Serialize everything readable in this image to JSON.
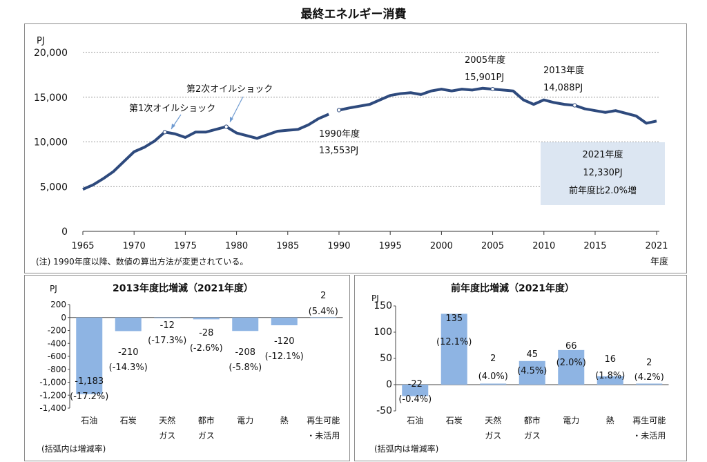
{
  "title": "最終エネルギー消費",
  "top_chart": {
    "unit": "PJ",
    "xlabel": "年度",
    "note": "(注) 1990年度以降、数値の算出方法が変更されている。",
    "annotations": {
      "oil_shock_1": "第1次オイルショック",
      "oil_shock_2": "第2次オイルショック",
      "y1990_label": "1990年度",
      "y1990_value": "13,553PJ",
      "y2005_label": "2005年度",
      "y2005_value": "15,901PJ",
      "y2013_label": "2013年度",
      "y2013_value": "14,088PJ"
    },
    "box": {
      "line1": "2021年度",
      "line2": "12,330PJ",
      "line3": "前年度比2.0%増"
    }
  },
  "bottom_left": {
    "title": "2013年度比増減（2021年度）",
    "unit": "PJ",
    "note": "(括弧内は増減率)"
  },
  "bottom_right": {
    "title": "前年度比増減（2021年度）",
    "unit": "PJ",
    "note": "(括弧内は増減率)"
  },
  "colors": {
    "line": "#2e4a7d",
    "bar": "#8eb4e3",
    "box": "#dce6f2",
    "grid": "#9a9a9a"
  },
  "chart_data": [
    {
      "type": "line",
      "title": "最終エネルギー消費",
      "ylabel": "PJ",
      "xlabel": "年度",
      "ylim": [
        0,
        20000
      ],
      "yticks": [
        0,
        5000,
        10000,
        15000,
        20000
      ],
      "ytick_labels": [
        "0",
        "5,000",
        "10,000",
        "15,000",
        "20,000"
      ],
      "xticks": [
        1965,
        1970,
        1975,
        1980,
        1985,
        1990,
        1995,
        2000,
        2005,
        2010,
        2015,
        2021
      ],
      "grid": true,
      "segments": [
        {
          "x": [
            1965,
            1966,
            1967,
            1968,
            1969,
            1970,
            1971,
            1972,
            1973,
            1974,
            1975,
            1976,
            1977,
            1978,
            1979,
            1980,
            1981,
            1982,
            1983,
            1984,
            1985,
            1986,
            1987,
            1988,
            1989
          ],
          "y": [
            4700,
            5200,
            5900,
            6700,
            7800,
            8900,
            9400,
            10100,
            11100,
            10900,
            10500,
            11100,
            11100,
            11400,
            11700,
            11000,
            10700,
            10400,
            10800,
            11200,
            11300,
            11400,
            11900,
            12600,
            13100
          ]
        },
        {
          "x": [
            1990,
            1991,
            1992,
            1993,
            1994,
            1995,
            1996,
            1997,
            1998,
            1999,
            2000,
            2001,
            2002,
            2003,
            2004,
            2005,
            2006,
            2007,
            2008,
            2009,
            2010,
            2011,
            2012,
            2013,
            2014,
            2015,
            2016,
            2017,
            2018,
            2019,
            2020,
            2021
          ],
          "y": [
            13553,
            13800,
            14000,
            14200,
            14700,
            15200,
            15400,
            15500,
            15300,
            15700,
            15900,
            15700,
            15900,
            15800,
            16000,
            15901,
            15800,
            15700,
            14700,
            14200,
            14700,
            14400,
            14200,
            14088,
            13700,
            13500,
            13300,
            13500,
            13200,
            12900,
            12090,
            12330
          ]
        }
      ],
      "markers": [
        1973,
        1979,
        1990,
        2005,
        2013
      ]
    },
    {
      "type": "bar",
      "title": "2013年度比増減（2021年度）",
      "ylabel": "PJ",
      "ylim": [
        -1400,
        200
      ],
      "yticks": [
        200,
        0,
        -200,
        -400,
        -600,
        -800,
        -1000,
        -1200,
        -1400
      ],
      "ytick_labels": [
        "200",
        "0",
        "-200",
        "-400",
        "-600",
        "-800",
        "-1,000",
        "-1,200",
        "-1,400"
      ],
      "categories": [
        [
          "石油"
        ],
        [
          "石炭"
        ],
        [
          "天然",
          "ガス"
        ],
        [
          "都市",
          "ガス"
        ],
        [
          "電力"
        ],
        [
          "熱"
        ],
        [
          "再生可能",
          "・未活用"
        ]
      ],
      "values": [
        -1183,
        -210,
        -12,
        -28,
        -208,
        -120,
        2
      ],
      "value_labels": [
        "-1,183",
        "-210",
        "-12",
        "-28",
        "-208",
        "-120",
        "2"
      ],
      "rate_labels": [
        "(-17.2%)",
        "(-14.3%)",
        "(-17.3%)",
        "(-2.6%)",
        "(-5.8%)",
        "(-12.1%)",
        "(5.4%)"
      ]
    },
    {
      "type": "bar",
      "title": "前年度比増減（2021年度）",
      "ylabel": "PJ",
      "ylim": [
        -50,
        150
      ],
      "yticks": [
        150,
        100,
        50,
        0,
        -50
      ],
      "ytick_labels": [
        "150",
        "100",
        "50",
        "0",
        "-50"
      ],
      "categories": [
        [
          "石油"
        ],
        [
          "石炭"
        ],
        [
          "天然",
          "ガス"
        ],
        [
          "都市",
          "ガス"
        ],
        [
          "電力"
        ],
        [
          "熱"
        ],
        [
          "再生可能",
          "・未活用"
        ]
      ],
      "values": [
        -22,
        135,
        2,
        45,
        66,
        16,
        2
      ],
      "value_labels": [
        "-22",
        "135",
        "2",
        "45",
        "66",
        "16",
        "2"
      ],
      "rate_labels": [
        "(-0.4%)",
        "(12.1%)",
        "(4.0%)",
        "(4.5%)",
        "(2.0%)",
        "(1.8%)",
        "(4.2%)"
      ]
    }
  ]
}
